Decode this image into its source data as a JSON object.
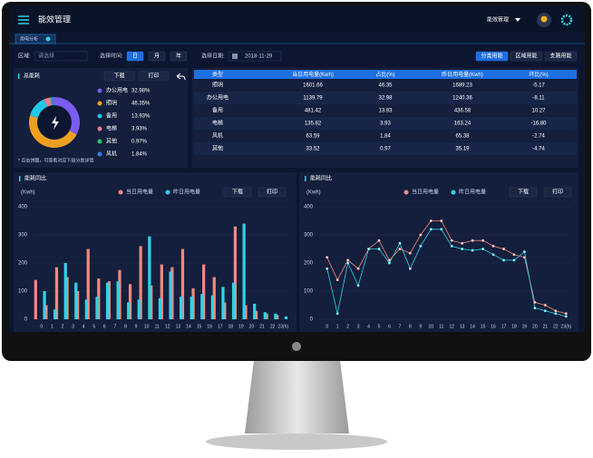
{
  "header": {
    "title": "能效管理",
    "menu": "能效管理"
  },
  "tab": "用电分析",
  "filters": {
    "area_label": "区域:",
    "area_placeholder": "请选择",
    "time_label": "选择时间:",
    "time_options": [
      "日",
      "月",
      "年"
    ],
    "date_label": "选择日期:",
    "date": "2018-11-29",
    "views": [
      "分类用能",
      "区域用能",
      "支路用能"
    ]
  },
  "table": {
    "columns": [
      "类型",
      "当日用电量(Kwh)",
      "占比(%)",
      "昨日用电量(Kwh)",
      "环比(%)"
    ],
    "rows": [
      [
        "照明",
        "1601.66",
        "46.35",
        "1689.23",
        "-5.17"
      ],
      [
        "办公用电",
        "1139.79",
        "32.98",
        "1240.36",
        "-8.11"
      ],
      [
        "备用",
        "481.42",
        "13.93",
        "436.58",
        "10.27"
      ],
      [
        "电梯",
        "135.82",
        "3.93",
        "163.24",
        "-16.80"
      ],
      [
        "风机",
        "63.59",
        "1.84",
        "65.38",
        "-2.74"
      ],
      [
        "其他",
        "33.52",
        "0.97",
        "35.19",
        "-4.74"
      ]
    ]
  },
  "chart_data": [
    {
      "type": "pie",
      "title": "总能耗",
      "buttons": [
        "下载",
        "打印"
      ],
      "note": "* 点击饼图，可查看对应下级分类详情",
      "categories": [
        "办公用电",
        "照明",
        "备用",
        "电梯",
        "其他",
        "风机"
      ],
      "values": [
        32.98,
        46.35,
        13.93,
        3.93,
        0.97,
        1.84
      ],
      "value_labels": [
        "32.98%",
        "46.35%",
        "13.93%",
        "3.93%",
        "0.97%",
        "1.84%"
      ],
      "colors": [
        "#7b5cf0",
        "#f0a020",
        "#1ec8e8",
        "#f07890",
        "#30c060",
        "#2f7ff0"
      ]
    },
    {
      "type": "bar",
      "title": "能耗同比",
      "buttons": [
        "下载",
        "打印"
      ],
      "y_label": "(Kwh)",
      "categories": [
        "0",
        "1",
        "2",
        "3",
        "4",
        "5",
        "6",
        "7",
        "8",
        "9",
        "10",
        "11",
        "12",
        "13",
        "14",
        "15",
        "16",
        "17",
        "18",
        "19",
        "20",
        "21",
        "22",
        "23(h)"
      ],
      "series": [
        {
          "name": "当日用电量",
          "color": "#f08a7e",
          "values": [
            140,
            50,
            185,
            150,
            100,
            250,
            145,
            135,
            175,
            125,
            260,
            120,
            195,
            185,
            250,
            110,
            195,
            150,
            60,
            330,
            50,
            30,
            20,
            15
          ]
        },
        {
          "name": "昨日用电量",
          "color": "#2ed3e8",
          "values": [
            100,
            35,
            200,
            130,
            70,
            80,
            130,
            135,
            60,
            70,
            295,
            75,
            170,
            80,
            80,
            90,
            85,
            115,
            130,
            340,
            55,
            25,
            20,
            10
          ]
        }
      ],
      "ylim": [
        0,
        400
      ],
      "yticks": [
        0,
        100,
        200,
        300,
        400
      ]
    },
    {
      "type": "line",
      "title": "能耗同比",
      "buttons": [
        "下载",
        "打印"
      ],
      "y_label": "(Kwh)",
      "categories": [
        "0",
        "1",
        "2",
        "3",
        "4",
        "5",
        "6",
        "7",
        "8",
        "9",
        "10",
        "11",
        "12",
        "13",
        "14",
        "15",
        "16",
        "17",
        "18",
        "19",
        "20",
        "21",
        "22",
        "23(h)"
      ],
      "series": [
        {
          "name": "当日用电量",
          "color": "#f08a7e",
          "values": [
            220,
            140,
            210,
            180,
            250,
            280,
            210,
            250,
            235,
            300,
            350,
            350,
            280,
            270,
            280,
            280,
            260,
            250,
            230,
            220,
            60,
            50,
            30,
            20
          ]
        },
        {
          "name": "昨日用电量",
          "color": "#2ed3e8",
          "values": [
            180,
            20,
            200,
            120,
            250,
            250,
            200,
            270,
            180,
            260,
            320,
            320,
            260,
            250,
            245,
            250,
            230,
            210,
            210,
            240,
            40,
            30,
            20,
            10
          ]
        }
      ],
      "ylim": [
        0,
        400
      ],
      "yticks": [
        0,
        100,
        200,
        300,
        400
      ]
    }
  ]
}
